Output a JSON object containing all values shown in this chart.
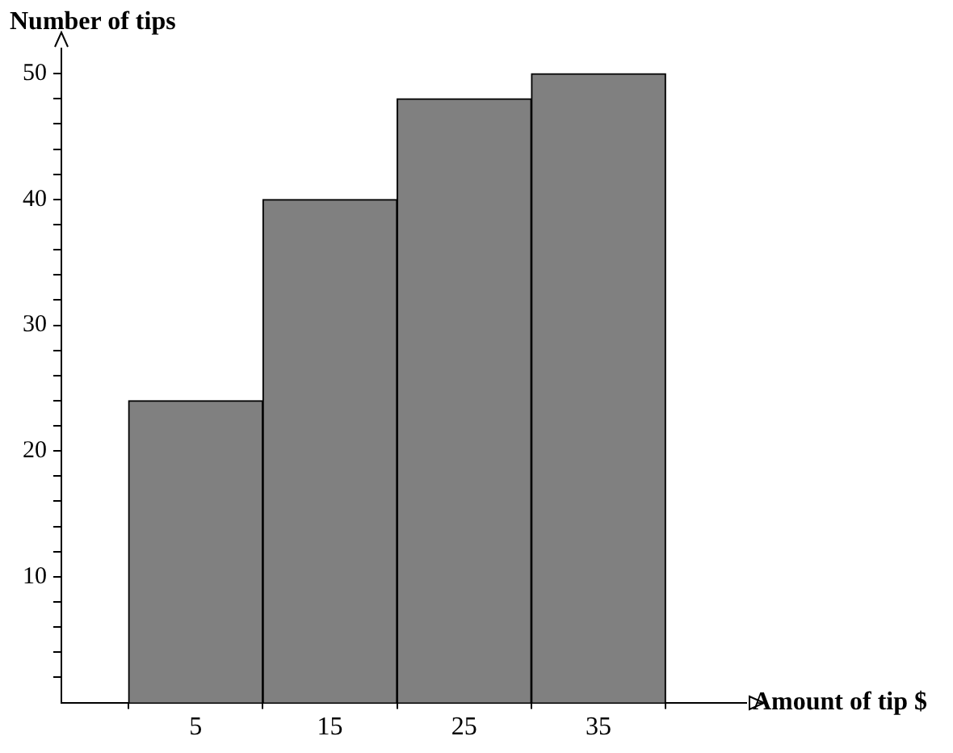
{
  "chart_data": {
    "type": "histogram",
    "ylabel": "Number of tips",
    "xlabel": "Amount of tip $",
    "bins": [
      0,
      10,
      20,
      30,
      40
    ],
    "values": [
      24,
      40,
      48,
      50
    ],
    "color": "#808080",
    "xlim": [
      -5,
      46
    ],
    "xticks": [
      5,
      15,
      25,
      35
    ],
    "ylim": [
      0,
      52
    ],
    "yticks": [
      {
        "value": 2,
        "label": null
      },
      {
        "value": 4,
        "label": null
      },
      {
        "value": 6,
        "label": null
      },
      {
        "value": 8,
        "label": null
      },
      10,
      {
        "value": 12,
        "label": null
      },
      {
        "value": 14,
        "label": null
      },
      {
        "value": 16,
        "label": null
      },
      {
        "value": 18,
        "label": null
      },
      20,
      {
        "value": 22,
        "label": null
      },
      {
        "value": 24,
        "label": null
      },
      {
        "value": 26,
        "label": null
      },
      {
        "value": 28,
        "label": null
      },
      30,
      {
        "value": 32,
        "label": null
      },
      {
        "value": 34,
        "label": null
      },
      {
        "value": 36,
        "label": null
      },
      {
        "value": 38,
        "label": null
      },
      40,
      {
        "value": 42,
        "label": null
      },
      {
        "value": 44,
        "label": null
      },
      {
        "value": 46,
        "label": null
      },
      {
        "value": 48,
        "label": null
      },
      50
    ],
    "grid": false,
    "legend": false
  }
}
